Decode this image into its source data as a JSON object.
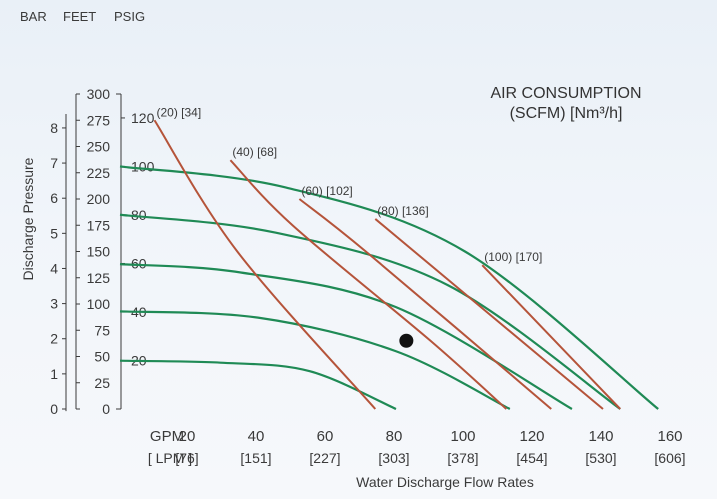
{
  "chart_data": {
    "type": "line",
    "title_line1": "AIR CONSUMPTION",
    "title_line2": "(SCFM) [Nm³/h]",
    "ylabel": "Discharge Pressure",
    "xlabel": "Water Discharge Flow Rates",
    "unit_headers": {
      "bar": "BAR",
      "feet": "FEET",
      "psig": "PSIG"
    },
    "bar_ticks": [
      "0",
      "1",
      "2",
      "3",
      "4",
      "5",
      "6",
      "7",
      "8"
    ],
    "feet_ticks": [
      "0",
      "25",
      "50",
      "75",
      "100",
      "125",
      "150",
      "175",
      "200",
      "225",
      "250",
      "275",
      "300"
    ],
    "psig_ticks": [
      "20",
      "40",
      "60",
      "80",
      "100",
      "120"
    ],
    "x_gpm_label": "GPM",
    "x_lpm_label": "[ LPM ]",
    "x_gpm": [
      "20",
      "40",
      "60",
      "80",
      "100",
      "120",
      "140",
      "160"
    ],
    "x_lpm": [
      "[76]",
      "[151]",
      "[227]",
      "[303]",
      "[378]",
      "[454]",
      "[530]",
      "[606]"
    ],
    "xlim_gpm": [
      0,
      160
    ],
    "ylim_feet": [
      0,
      300
    ],
    "pressure_series": [
      {
        "name": "20",
        "points": [
          [
            0,
            46
          ],
          [
            30,
            44
          ],
          [
            55,
            36
          ],
          [
            80,
            0
          ]
        ]
      },
      {
        "name": "40",
        "points": [
          [
            0,
            93
          ],
          [
            40,
            87
          ],
          [
            80,
            55
          ],
          [
            113,
            0
          ]
        ]
      },
      {
        "name": "60",
        "points": [
          [
            0,
            138
          ],
          [
            35,
            130
          ],
          [
            80,
            97
          ],
          [
            131,
            0
          ]
        ]
      },
      {
        "name": "80",
        "points": [
          [
            0,
            185
          ],
          [
            45,
            168
          ],
          [
            95,
            118
          ],
          [
            145,
            0
          ]
        ]
      },
      {
        "name": "100",
        "points": [
          [
            0,
            231
          ],
          [
            48,
            211
          ],
          [
            100,
            150
          ],
          [
            156,
            0
          ]
        ]
      }
    ],
    "air_series": [
      {
        "name": "(20) [34]",
        "points": [
          [
            10,
            275
          ],
          [
            34,
            150
          ],
          [
            74,
            0
          ]
        ]
      },
      {
        "name": "(40) [68]",
        "points": [
          [
            32,
            237
          ],
          [
            50,
            175
          ],
          [
            90,
            65
          ],
          [
            112,
            0
          ]
        ]
      },
      {
        "name": "(60) [102]",
        "points": [
          [
            52,
            200
          ],
          [
            72,
            148
          ],
          [
            125,
            0
          ]
        ]
      },
      {
        "name": "(80) [136]",
        "points": [
          [
            74,
            181
          ],
          [
            140,
            0
          ]
        ]
      },
      {
        "name": "(100) [170]",
        "points": [
          [
            105,
            137
          ],
          [
            145,
            0
          ]
        ]
      }
    ],
    "operating_point": [
      83,
      65
    ],
    "colors": {
      "pressure_curve": "#1f8a55",
      "air_curve": "#b5543a",
      "text": "#3a3a3a"
    }
  }
}
